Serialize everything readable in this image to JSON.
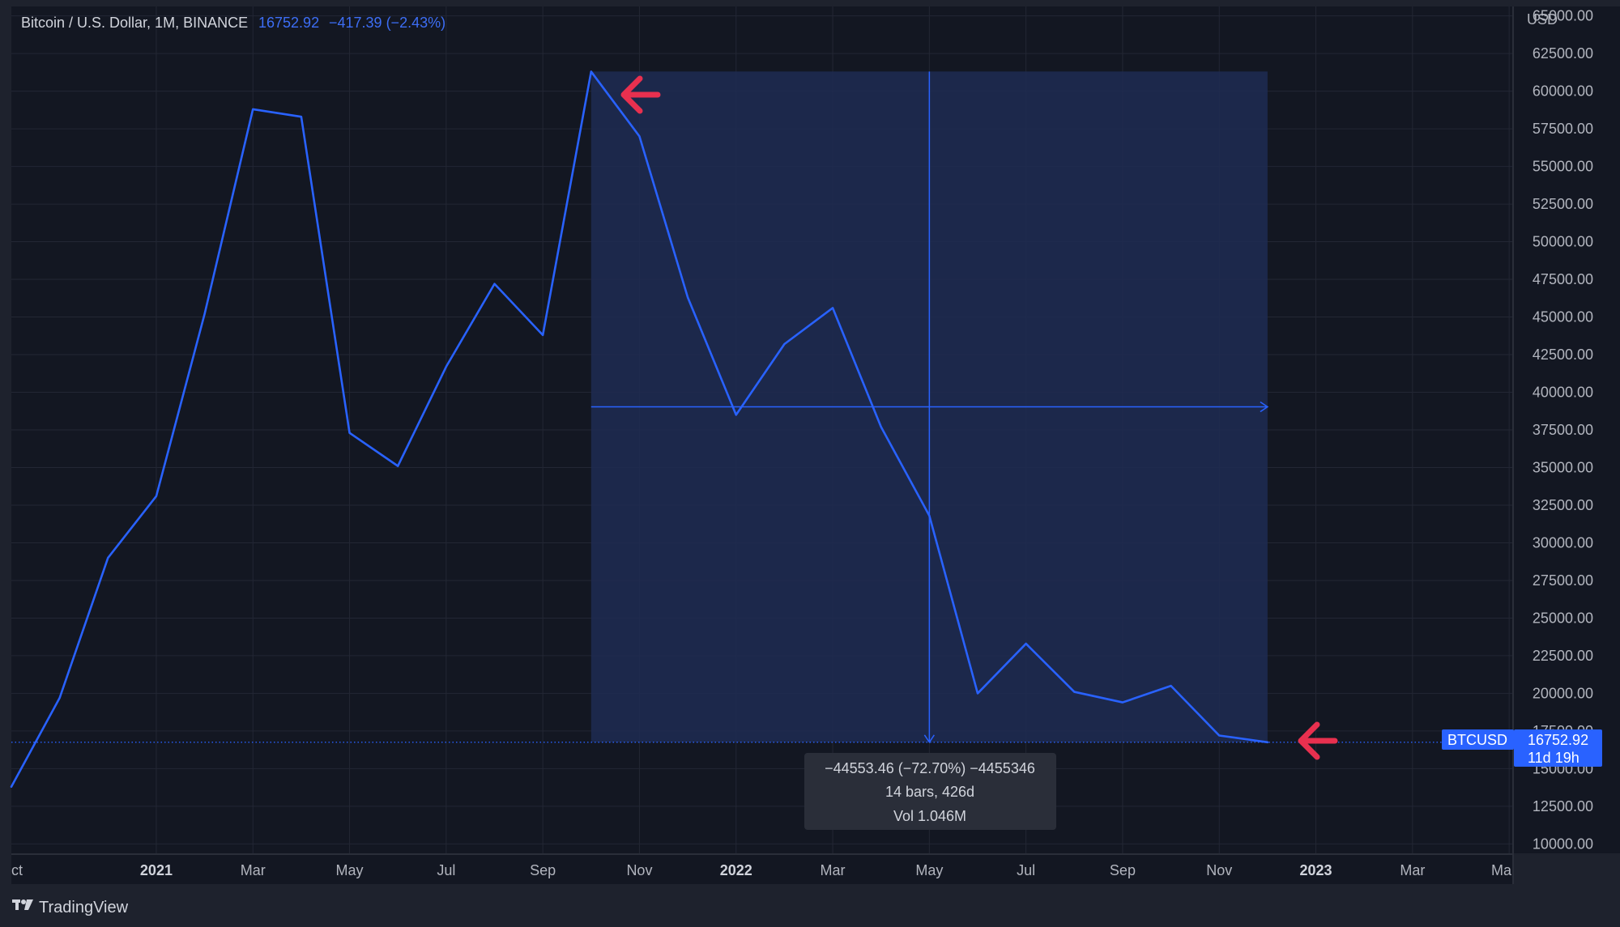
{
  "header": {
    "symbol_title": "Bitcoin / U.S. Dollar, 1M, BINANCE",
    "last_price": "16752.92",
    "change": "−417.39 (−2.43%)"
  },
  "currency_label": "USD",
  "last_price_badge": {
    "symbol": "BTCUSD",
    "price": "16752.92",
    "countdown": "11d 19h"
  },
  "measure_tooltip": {
    "line1": "−44553.46 (−72.70%) −4455346",
    "line2": "14 bars, 426d",
    "line3": "Vol 1.046M"
  },
  "brand": {
    "name": "TradingView"
  },
  "colors": {
    "background": "#131722",
    "panel": "#1e222d",
    "series": "#2962ff",
    "measure_fill": "#1e2b52",
    "arrow": "#e8304f",
    "grid": "#232734"
  },
  "icons": [
    "tradingview-logo-icon",
    "red-arrow-left-icon"
  ],
  "chart_data": {
    "type": "line",
    "title": "Bitcoin / U.S. Dollar, 1M, BINANCE",
    "ylabel": "USD",
    "ylim": [
      9375,
      65625
    ],
    "yticks": [
      10000,
      12500,
      15000,
      17500,
      20000,
      22500,
      25000,
      27500,
      30000,
      32500,
      35000,
      37500,
      40000,
      42500,
      45000,
      47500,
      50000,
      52500,
      55000,
      57500,
      60000,
      62500,
      65000
    ],
    "xlim": [
      "2020-10",
      "2023-04"
    ],
    "x_ticks": [
      {
        "label": "ct",
        "x": "2020-10",
        "year": false
      },
      {
        "label": "2021",
        "x": "2021-01",
        "year": true
      },
      {
        "label": "Mar",
        "x": "2021-03",
        "year": false
      },
      {
        "label": "May",
        "x": "2021-05",
        "year": false
      },
      {
        "label": "Jul",
        "x": "2021-07",
        "year": false
      },
      {
        "label": "Sep",
        "x": "2021-09",
        "year": false
      },
      {
        "label": "Nov",
        "x": "2021-11",
        "year": false
      },
      {
        "label": "2022",
        "x": "2022-01",
        "year": true
      },
      {
        "label": "Mar",
        "x": "2022-03",
        "year": false
      },
      {
        "label": "May",
        "x": "2022-05",
        "year": false
      },
      {
        "label": "Jul",
        "x": "2022-07",
        "year": false
      },
      {
        "label": "Sep",
        "x": "2022-09",
        "year": false
      },
      {
        "label": "Nov",
        "x": "2022-11",
        "year": false
      },
      {
        "label": "2023",
        "x": "2023-01",
        "year": true
      },
      {
        "label": "Mar",
        "x": "2023-03",
        "year": false
      },
      {
        "label": "Ma",
        "x": "2023-05",
        "year": false
      }
    ],
    "grid": true,
    "series": [
      {
        "x": [
          "2020-10",
          "2020-11",
          "2020-12",
          "2021-01",
          "2021-02",
          "2021-03",
          "2021-04",
          "2021-05",
          "2021-06",
          "2021-07",
          "2021-08",
          "2021-09",
          "2021-10",
          "2021-11",
          "2021-12",
          "2022-01",
          "2022-02",
          "2022-03",
          "2022-04",
          "2022-05",
          "2022-06",
          "2022-07",
          "2022-08",
          "2022-09",
          "2022-10",
          "2022-11",
          "2022-12"
        ],
        "values": [
          13800,
          19700,
          29000,
          33100,
          45200,
          58800,
          58300,
          37300,
          35100,
          41700,
          47200,
          43800,
          61300,
          57000,
          46300,
          38500,
          43200,
          45600,
          37700,
          31800,
          20000,
          23300,
          20100,
          19400,
          20500,
          17200,
          16752.92
        ]
      }
    ],
    "measure": {
      "from_x": "2021-10",
      "to_x": "2022-12",
      "from_y": 61306,
      "to_y": 16752.92
    }
  }
}
